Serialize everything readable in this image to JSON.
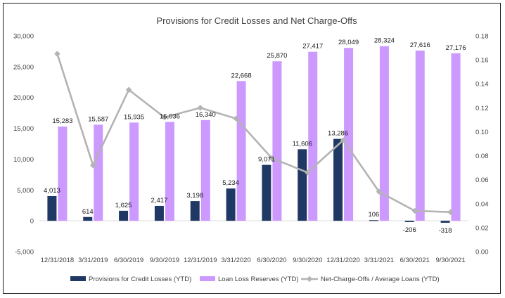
{
  "chart_data": {
    "type": "bar",
    "title": "Provisions for Credit Losses and Net Charge-Offs",
    "categories": [
      "12/31/2018",
      "3/31/2019",
      "6/30/2019",
      "9/30/2019",
      "12/31/2019",
      "3/31/2020",
      "6/30/2020",
      "9/30/2020",
      "12/31/2020",
      "3/31/2021",
      "6/30/2021",
      "9/30/2021"
    ],
    "series": [
      {
        "name": "Provisions for Credit Losses (YTD)",
        "type": "bar",
        "axis": "left",
        "color": "#203864",
        "values": [
          4013,
          614,
          1625,
          2417,
          3198,
          5234,
          9071,
          11606,
          13286,
          106,
          -206,
          -318
        ],
        "labels": [
          "4,013",
          "614",
          "1,625",
          "2,417",
          "3,198",
          "5,234",
          "9,071",
          "11,606",
          "13,286",
          "106",
          "-206",
          "-318"
        ]
      },
      {
        "name": "Loan Loss Reserves (YTD)",
        "type": "bar",
        "axis": "left",
        "color": "#cc99ff",
        "values": [
          15283,
          15587,
          15935,
          16036,
          16340,
          22668,
          25870,
          27417,
          28049,
          28324,
          27616,
          27176
        ],
        "labels": [
          "15,283",
          "15,587",
          "15,935",
          "16,036",
          "16,340",
          "22,668",
          "25,870",
          "27,417",
          "28,049",
          "28,324",
          "27,616",
          "27,176"
        ]
      },
      {
        "name": "Net-Charge-Offs / Average Loans (YTD)",
        "type": "line",
        "axis": "right",
        "color": "#b3b3b3",
        "values": [
          0.165,
          0.072,
          0.135,
          0.112,
          0.12,
          0.111,
          0.078,
          0.066,
          0.093,
          0.05,
          0.034,
          0.033
        ]
      }
    ],
    "y_left": {
      "min": -5000,
      "max": 30000,
      "step": 5000,
      "ticks": [
        "-5,000",
        "0",
        "5,000",
        "10,000",
        "15,000",
        "20,000",
        "25,000",
        "30,000"
      ]
    },
    "y_right": {
      "min": 0,
      "max": 0.18,
      "step": 0.02,
      "ticks": [
        "0.00",
        "0.02",
        "0.04",
        "0.06",
        "0.08",
        "0.10",
        "0.12",
        "0.14",
        "0.16",
        "0.18"
      ]
    },
    "grid": false,
    "legend_position": "bottom"
  }
}
